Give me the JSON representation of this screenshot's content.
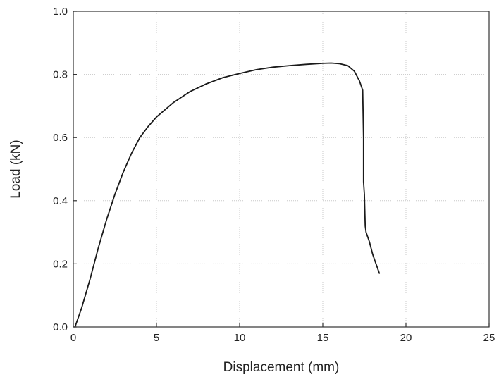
{
  "chart_data": {
    "type": "line",
    "title": "",
    "xlabel": "Displacement (mm)",
    "ylabel": "Load (kN)",
    "xlim": [
      0,
      25
    ],
    "ylim": [
      0,
      1.0
    ],
    "x_ticks": [
      "0",
      "5",
      "10",
      "15",
      "20",
      "25"
    ],
    "y_ticks": [
      "0.0",
      "0.2",
      "0.4",
      "0.6",
      "0.8",
      "1.0"
    ],
    "grid": true,
    "legend": "none",
    "line_color": "#1a1a1a",
    "series": [
      {
        "x": [
          0.1,
          0.5,
          1.0,
          1.5,
          2.0,
          2.5,
          3.0,
          3.5,
          4.0,
          4.5,
          5.0,
          6.0,
          7.0,
          8.0,
          9.0,
          10.0,
          11.0,
          12.0,
          13.0,
          14.0,
          15.0,
          15.5,
          16.0,
          16.5,
          16.9,
          17.2,
          17.4,
          17.45,
          17.45,
          17.5,
          17.55,
          17.6,
          17.8,
          18.0,
          18.2,
          18.4
        ],
        "y": [
          0.0,
          0.06,
          0.15,
          0.25,
          0.34,
          0.42,
          0.49,
          0.55,
          0.6,
          0.635,
          0.665,
          0.71,
          0.745,
          0.77,
          0.79,
          0.803,
          0.815,
          0.823,
          0.828,
          0.832,
          0.835,
          0.836,
          0.834,
          0.828,
          0.81,
          0.78,
          0.75,
          0.6,
          0.46,
          0.42,
          0.32,
          0.3,
          0.27,
          0.23,
          0.2,
          0.17
        ]
      }
    ]
  }
}
